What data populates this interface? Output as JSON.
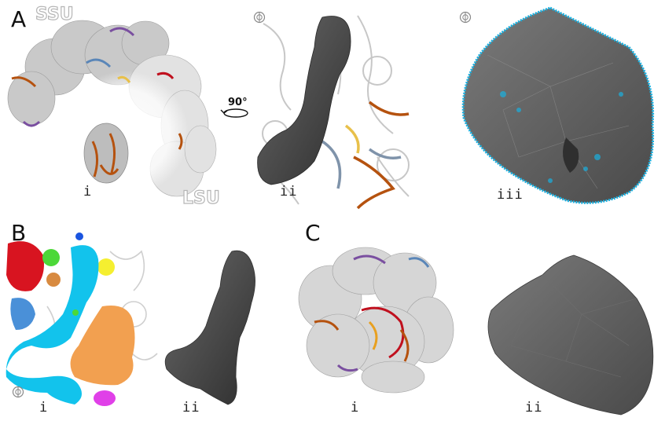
{
  "panels": {
    "A": {
      "letter": "A",
      "ssu_label": "SSU",
      "lsu_label": "LSU",
      "rotation_label": "90°",
      "sub": [
        "i",
        "ii",
        "iii"
      ]
    },
    "B": {
      "letter": "B",
      "sub": [
        "i",
        "ii"
      ]
    },
    "C": {
      "letter": "C",
      "sub": [
        "i",
        "ii"
      ]
    }
  },
  "icons": [
    "view-direction-icon",
    "view-direction-icon",
    "view-direction-icon",
    "rotation-arrow-icon"
  ],
  "colors": {
    "surface_grey": "#5a5a5a",
    "surface_dark": "#3c3c3c",
    "ribosome_light": "#d8d8d8",
    "rrna_orange": "#b5520f",
    "protein_blue": "#5a86b8",
    "protein_purple": "#7a4fa0",
    "protein_red": "#c0101e",
    "protein_yellow": "#e8c04a",
    "mesh_cyan": "#19b0e0",
    "pocket_red": "#d81420",
    "pocket_cyan": "#12c3ec",
    "pocket_blue": "#1a55e0",
    "pocket_orange": "#f2a050",
    "pocket_green": "#4cd838",
    "pocket_yellow": "#f5ef30",
    "pocket_magenta": "#e040e8",
    "pocket_sky": "#4a90d8"
  }
}
